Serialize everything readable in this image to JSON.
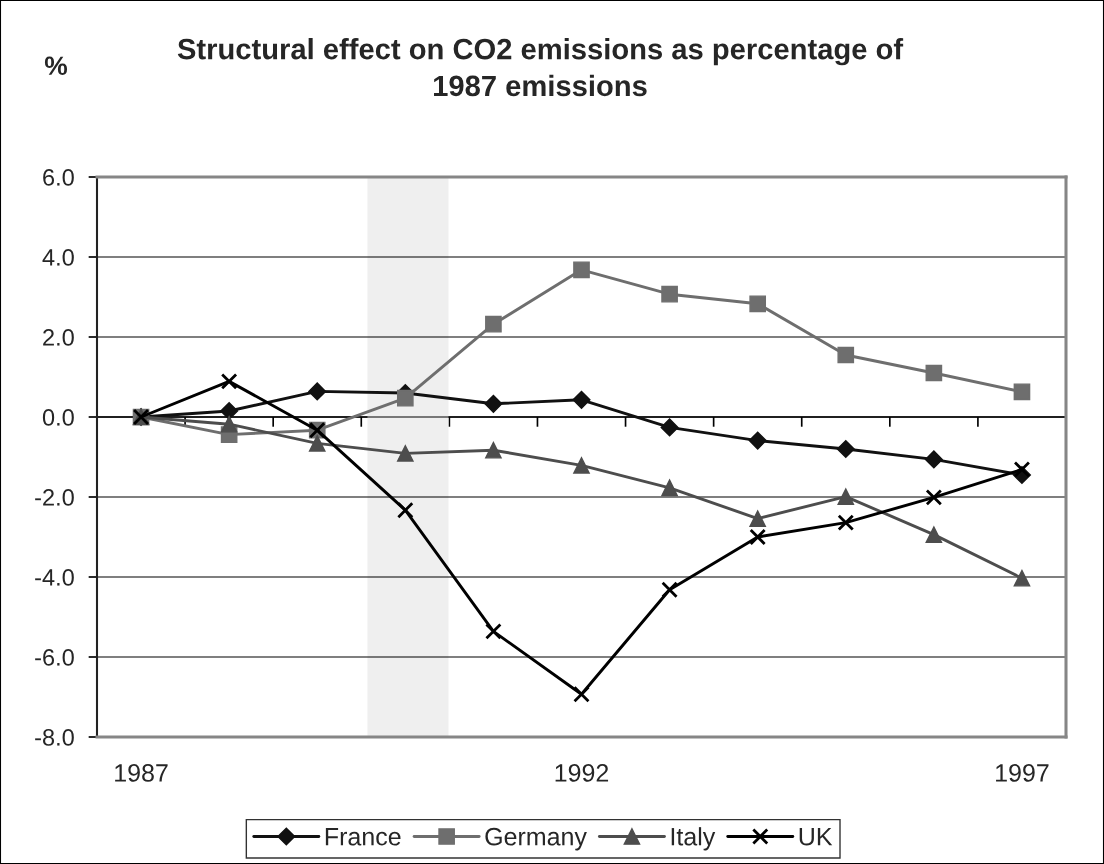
{
  "chart_data": {
    "type": "line",
    "title": "Structural effect on CO2 emissions as percentage of\n1987 emissions",
    "ylabel": "%",
    "x": [
      1987,
      1988,
      1989,
      1990,
      1991,
      1992,
      1993,
      1994,
      1995,
      1996,
      1997
    ],
    "xlim": [
      1986.5,
      1997.5
    ],
    "xticks": [
      1987,
      {
        "value": 1987.5,
        "label": null
      },
      {
        "value": 1988.5,
        "label": null
      },
      {
        "value": 1989.5,
        "label": null
      },
      {
        "value": 1990.5,
        "label": null
      },
      {
        "value": 1991.5,
        "label": null
      },
      1992,
      {
        "value": 1992.5,
        "label": null
      },
      {
        "value": 1993.5,
        "label": null
      },
      {
        "value": 1994.5,
        "label": null
      },
      {
        "value": 1995.5,
        "label": null
      },
      {
        "value": 1996.5,
        "label": null
      },
      1997,
      {
        "value": 1997.5,
        "label": null
      }
    ],
    "ylim": [
      -8,
      6
    ],
    "yticks": [
      {
        "value": -8,
        "label": "-8.0"
      },
      {
        "value": -6,
        "label": "-6.0"
      },
      {
        "value": -4,
        "label": "-4.0"
      },
      {
        "value": -2,
        "label": "-2.0"
      },
      {
        "value": 0,
        "label": "0.0"
      },
      {
        "value": 2,
        "label": "2.0"
      },
      {
        "value": 4,
        "label": "4.0"
      },
      {
        "value": 6,
        "label": "6.0"
      }
    ],
    "grid": "y",
    "legend": "bottom",
    "line_style": "solid",
    "bands": [
      {
        "axis": "x",
        "from": 1989.57,
        "to": 1990.49,
        "color": "#efefef"
      }
    ],
    "series": [
      {
        "name": "France",
        "color": "#111111",
        "marker": "diamond",
        "values": [
          0,
          0.15,
          0.64,
          0.6,
          0.33,
          0.43,
          -0.26,
          -0.59,
          -0.8,
          -1.06,
          -1.45
        ]
      },
      {
        "name": "Germany",
        "color": "#6e6e6e",
        "marker": "square",
        "values": [
          0,
          -0.44,
          -0.33,
          0.47,
          2.32,
          3.68,
          3.07,
          2.83,
          1.55,
          1.1,
          0.63
        ]
      },
      {
        "name": "Italy",
        "color": "#4d4d4d",
        "marker": "triangle",
        "values": [
          0,
          -0.18,
          -0.66,
          -0.91,
          -0.83,
          -1.21,
          -1.77,
          -2.54,
          -1.99,
          -2.94,
          -4.03
        ]
      },
      {
        "name": "UK",
        "color": "#000000",
        "marker": "cross",
        "values": [
          0,
          0.89,
          -0.33,
          -2.33,
          -5.36,
          -6.93,
          -4.32,
          -3.0,
          -2.64,
          -2.01,
          -1.31
        ]
      }
    ]
  }
}
